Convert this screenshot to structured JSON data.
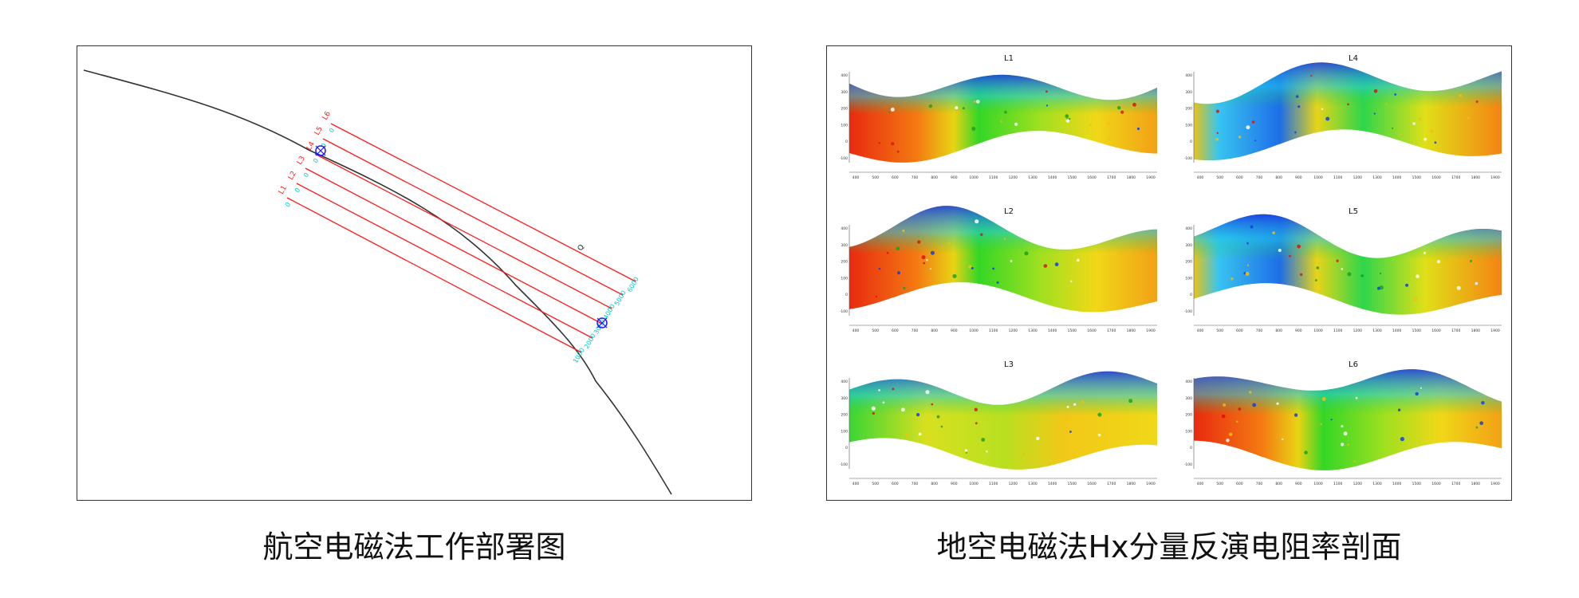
{
  "captions": {
    "left": "航空电磁法工作部署图",
    "right": "地空电磁法Hx分量反演电阻率剖面"
  },
  "deployment_map": {
    "lines": [
      {
        "label": "L6",
        "start_tick": "0",
        "end_tick": "6000"
      },
      {
        "label": "L5",
        "start_tick": "0",
        "end_tick": "5000"
      },
      {
        "label": "L4",
        "start_tick": "0",
        "end_tick": "4000"
      },
      {
        "label": "L3",
        "start_tick": "0",
        "end_tick": "3000"
      },
      {
        "label": "L2",
        "start_tick": "0",
        "end_tick": "2000"
      },
      {
        "label": "L1",
        "start_tick": "0",
        "end_tick": "1000"
      }
    ],
    "point_label": "Q",
    "colors": {
      "survey_line": "#ff1a1a",
      "tick_label": "#00cccc",
      "track": "#333333",
      "marker": "#1a1aff"
    }
  },
  "profiles": [
    {
      "title": "L1",
      "y_ticks": [
        "400",
        "300",
        "200",
        "100",
        "0",
        "-100"
      ],
      "x_ticks": [
        "400",
        "500",
        "600",
        "700",
        "800",
        "900",
        "1000",
        "1100",
        "1200",
        "1300",
        "1400",
        "1500",
        "1600",
        "1700",
        "1800",
        "1900"
      ],
      "dominant": "warm-left"
    },
    {
      "title": "L4",
      "y_ticks": [
        "400",
        "300",
        "200",
        "100",
        "0",
        "-100"
      ],
      "x_ticks": [
        "400",
        "500",
        "600",
        "700",
        "800",
        "900",
        "1000",
        "1100",
        "1200",
        "1300",
        "1400",
        "1500",
        "1600",
        "1700",
        "1800",
        "1900"
      ],
      "dominant": "blue-left"
    },
    {
      "title": "L2",
      "y_ticks": [
        "400",
        "300",
        "200",
        "100",
        "0",
        "-100"
      ],
      "x_ticks": [
        "400",
        "500",
        "600",
        "700",
        "800",
        "900",
        "1000",
        "1100",
        "1200",
        "1300",
        "1400",
        "1500",
        "1600",
        "1700",
        "1800",
        "1900"
      ],
      "dominant": "warm-left"
    },
    {
      "title": "L5",
      "y_ticks": [
        "400",
        "300",
        "200",
        "100",
        "0",
        "-100"
      ],
      "x_ticks": [
        "400",
        "500",
        "600",
        "700",
        "800",
        "900",
        "1000",
        "1100",
        "1200",
        "1300",
        "1400",
        "1500",
        "1600",
        "1700",
        "1800",
        "1900"
      ],
      "dominant": "blue-left"
    },
    {
      "title": "L3",
      "y_ticks": [
        "400",
        "300",
        "200",
        "100",
        "0",
        "-100"
      ],
      "x_ticks": [
        "400",
        "500",
        "600",
        "700",
        "800",
        "900",
        "1000",
        "1100",
        "1200",
        "1300",
        "1400",
        "1500",
        "1600",
        "1700",
        "1800",
        "1900"
      ],
      "dominant": "yellow"
    },
    {
      "title": "L6",
      "y_ticks": [
        "400",
        "300",
        "200",
        "100",
        "0",
        "-100"
      ],
      "x_ticks": [
        "400",
        "500",
        "600",
        "700",
        "800",
        "900",
        "1000",
        "1100",
        "1200",
        "1300",
        "1400",
        "1500",
        "1600",
        "1700",
        "1800",
        "1900"
      ],
      "dominant": "warm-left"
    }
  ]
}
